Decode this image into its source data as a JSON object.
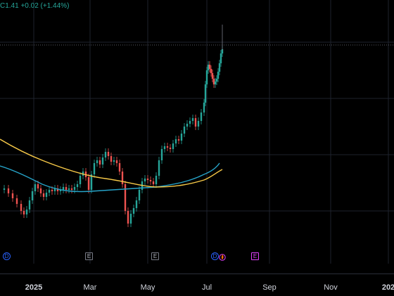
{
  "status": {
    "close_value": "C1.41",
    "change": "+0.02 (+1.44%)"
  },
  "colors": {
    "up": "#26a69a",
    "down": "#ef5350",
    "ma_fast": "#f7c948",
    "ma_slow": "#26a3c8",
    "grid": "#1e222d",
    "dividend_badge": "#2962ff",
    "earnings_badge": "#787b86",
    "future_earnings_badge": "#e040fb"
  },
  "event_badges": [
    {
      "type": "D",
      "icon": "dividend-icon"
    },
    {
      "type": "E",
      "icon": "earnings-icon"
    },
    {
      "type": "E",
      "icon": "earnings-icon"
    },
    {
      "type": "D",
      "icon": "dividend-icon"
    },
    {
      "type": "flame",
      "icon": "flame-icon"
    },
    {
      "type": "E",
      "icon": "upcoming-earnings-icon"
    }
  ],
  "time_axis": {
    "labels": [
      "2025",
      "Mar",
      "May",
      "Jul",
      "Sep",
      "Nov",
      "202"
    ]
  }
}
